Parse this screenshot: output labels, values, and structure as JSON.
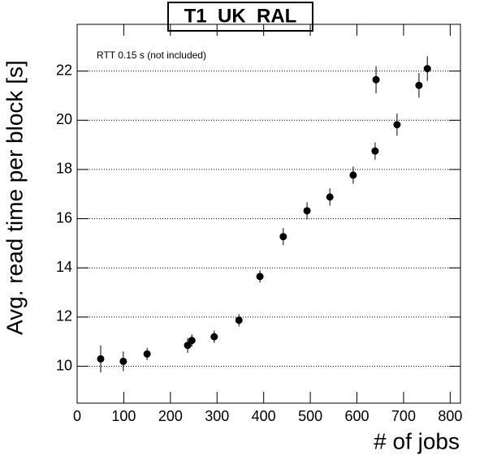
{
  "chart_data": {
    "type": "scatter",
    "title": "T1_UK_RAL",
    "annotation": "RTT 0.15 s (not included)",
    "x_label": "# of jobs",
    "y_label": "Avg. read time per block [s]",
    "xlim": [
      0,
      822
    ],
    "ylim": [
      8.5,
      23.9
    ],
    "xticks": [
      0,
      100,
      200,
      300,
      400,
      500,
      600,
      700,
      800
    ],
    "yticks": [
      10,
      12,
      14,
      16,
      18,
      20,
      22
    ],
    "grid": true,
    "series": [
      {
        "color": "#000000",
        "x": [
          50.5,
          99,
          150,
          237,
          246,
          294,
          347,
          392,
          442,
          493,
          542,
          592,
          639,
          641,
          686,
          733,
          751
        ],
        "values": [
          10.3,
          10.2,
          10.5,
          10.85,
          11.05,
          11.2,
          11.87,
          13.65,
          15.27,
          16.32,
          16.88,
          17.77,
          18.75,
          21.65,
          19.82,
          21.42,
          22.1
        ],
        "errors": [
          0.55,
          0.4,
          0.25,
          0.3,
          0.25,
          0.25,
          0.25,
          0.25,
          0.35,
          0.35,
          0.35,
          0.35,
          0.35,
          0.55,
          0.45,
          0.5,
          0.5
        ]
      }
    ]
  }
}
